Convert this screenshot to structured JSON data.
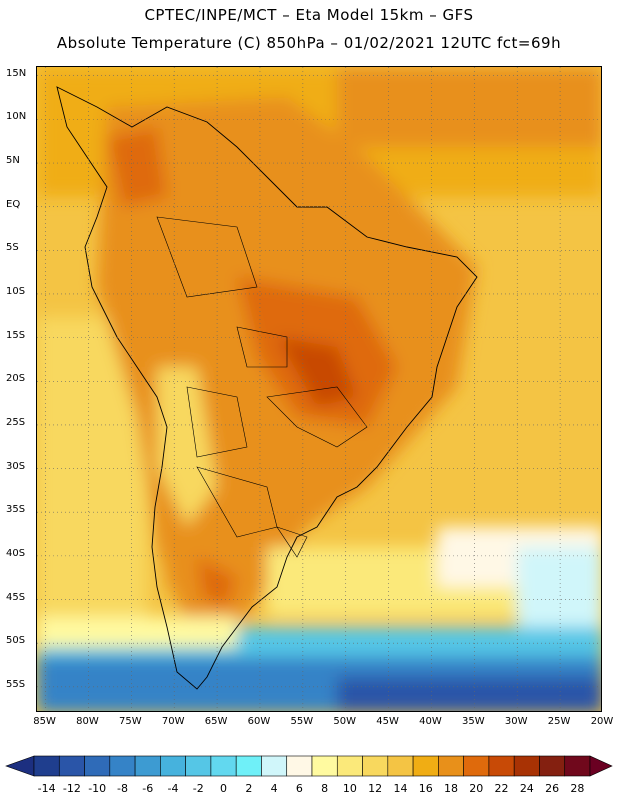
{
  "title_line1": "CPTEC/INPE/MCT –  Eta Model 15km – GFS",
  "title_line2": "Absolute Temperature (C) 850hPa – 01/02/2021 12UTC fct=69h",
  "map": {
    "projection": "lat-lon",
    "lon_range": [
      -86,
      -20
    ],
    "lat_range": [
      -58,
      16
    ],
    "gridlines": "dotted",
    "lat_labels": [
      "15N",
      "10N",
      "5N",
      "EQ",
      "5S",
      "10S",
      "15S",
      "20S",
      "25S",
      "30S",
      "35S",
      "40S",
      "45S",
      "50S",
      "55S"
    ],
    "lat_values": [
      15,
      10,
      5,
      0,
      -5,
      -10,
      -15,
      -20,
      -25,
      -30,
      -35,
      -40,
      -45,
      -50,
      -55
    ],
    "lon_labels": [
      "85W",
      "80W",
      "75W",
      "70W",
      "65W",
      "60W",
      "55W",
      "50W",
      "45W",
      "40W",
      "35W",
      "30W",
      "25W",
      "20W"
    ],
    "lon_values": [
      -85,
      -80,
      -75,
      -70,
      -65,
      -60,
      -55,
      -50,
      -45,
      -40,
      -35,
      -30,
      -25,
      -20
    ]
  },
  "colorbar": {
    "labels": [
      "-14",
      "-12",
      "-10",
      "-8",
      "-6",
      "-4",
      "-2",
      "0",
      "2",
      "4",
      "6",
      "8",
      "10",
      "12",
      "14",
      "16",
      "18",
      "20",
      "22",
      "24",
      "26",
      "28"
    ],
    "colors": [
      "#1f3e8e",
      "#2a55a8",
      "#2f6bb8",
      "#3583c7",
      "#3d9bd2",
      "#46b2dd",
      "#55c6e6",
      "#62d8ef",
      "#6ff0f8",
      "#d0f6fa",
      "#fff8e6",
      "#fffaa0",
      "#fbe97a",
      "#f8d85e",
      "#f4c444",
      "#f0ad14",
      "#e8901a",
      "#df6a0c",
      "#c84a06",
      "#a83204",
      "#842010",
      "#70081c"
    ]
  }
}
